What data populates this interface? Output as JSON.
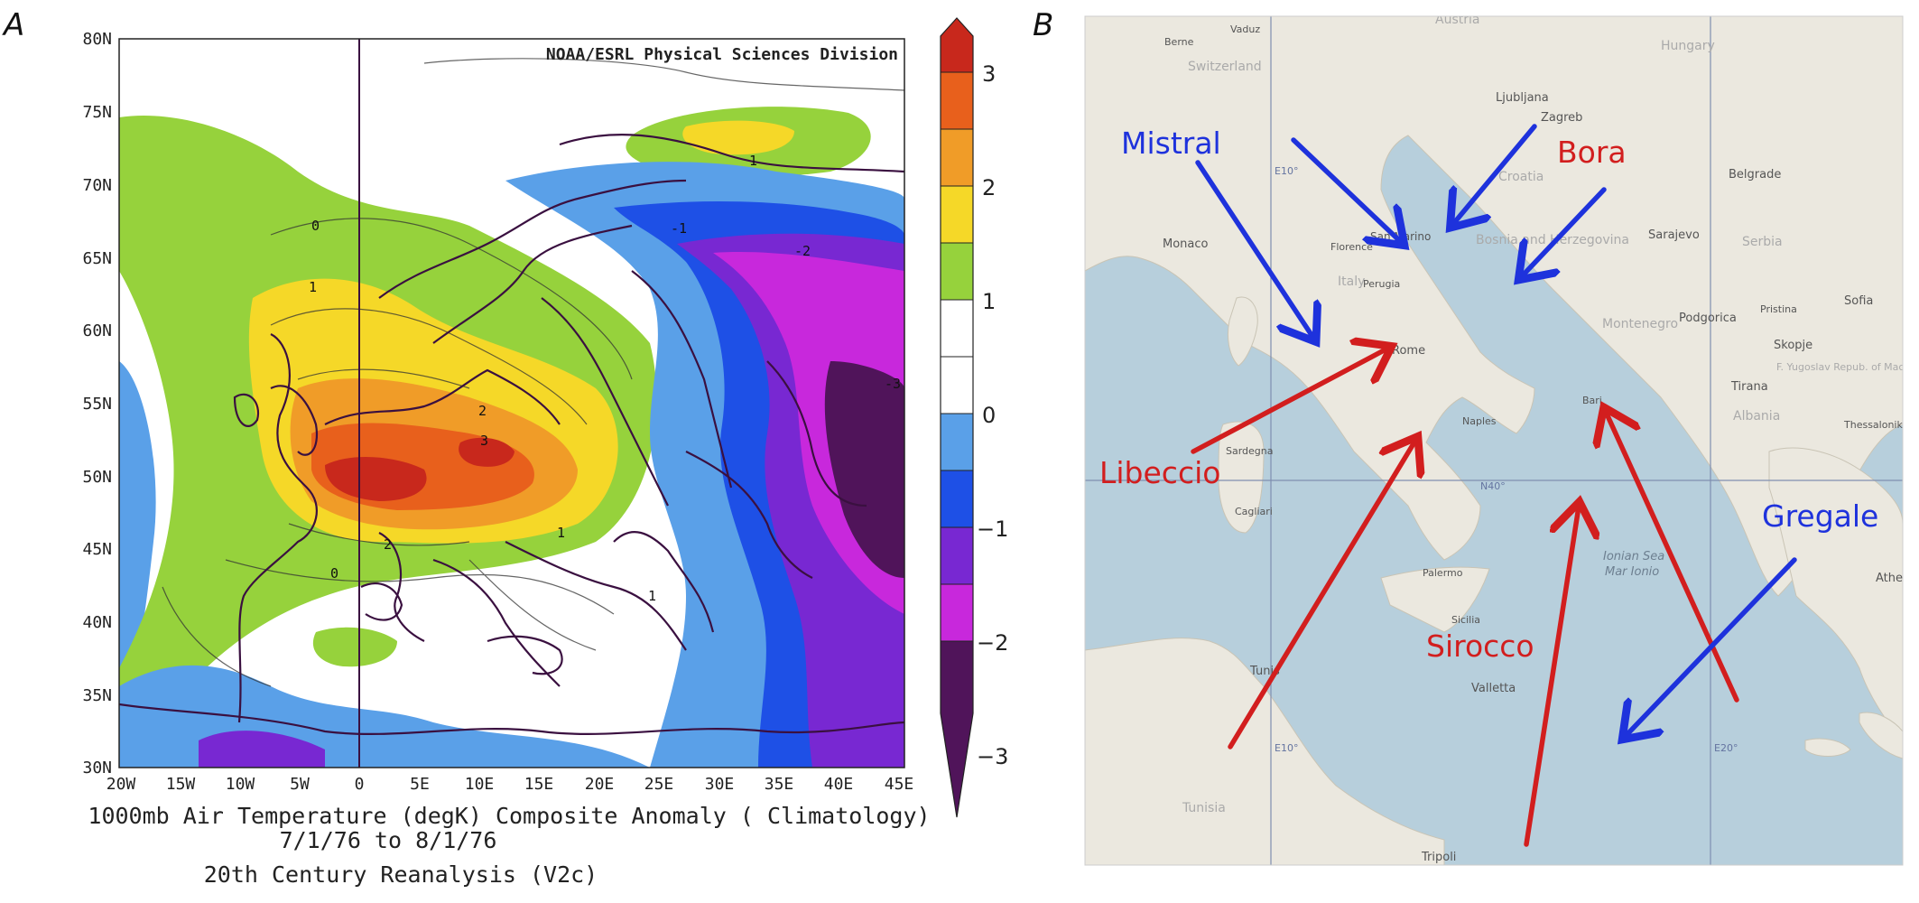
{
  "panels": {
    "a_label": "A",
    "b_label": "B"
  },
  "map_a": {
    "credit": "NOAA/ESRL Physical Sciences Division",
    "y_ticks": [
      "80N",
      "75N",
      "70N",
      "65N",
      "60N",
      "55N",
      "50N",
      "45N",
      "40N",
      "35N",
      "30N"
    ],
    "x_ticks": [
      "20W",
      "15W",
      "10W",
      "5W",
      "0",
      "5E",
      "10E",
      "15E",
      "20E",
      "25E",
      "30E",
      "35E",
      "40E",
      "45E"
    ],
    "caption_line1": "1000mb Air Temperature (degK) Composite Anomaly ( Climatology)",
    "caption_line2": "7/1/76   to 8/1/76",
    "caption_line3": "20th Century Reanalysis (V2c)",
    "contour_labels": [
      "1",
      "1",
      "2",
      "3",
      "1",
      "-1",
      "-2",
      "0",
      "0",
      "1",
      "2",
      "-3"
    ],
    "colorbar": {
      "labels": [
        "3",
        "2",
        "1",
        "0",
        "−1",
        "−2",
        "−3"
      ],
      "colors": [
        "#c8281c",
        "#e8601c",
        "#f09c28",
        "#f5d828",
        "#96d23c",
        "#ffffff",
        "#ffffff",
        "#5aa0e8",
        "#1e50e6",
        "#7828d2",
        "#c828dc",
        "#50145a"
      ]
    }
  },
  "map_b": {
    "cities": [
      "Vaduz",
      "Berne",
      "Switzerland",
      "Ljubljana",
      "Zagreb",
      "Croatia",
      "Monaco",
      "San Marino",
      "Florence",
      "Italy",
      "Perugia",
      "Bosnia and Herzegovina",
      "Sarajevo",
      "Belgrade",
      "Serbia",
      "Sofia",
      "Montenegro",
      "Podgorica",
      "Skopje",
      "Pristina",
      "F. Yugoslav Repub. of Macedonia",
      "Tirana",
      "Albania",
      "Rome",
      "Naples",
      "Bari",
      "Sardegna",
      "Cagliari",
      "Palermo",
      "Sicilia",
      "Tunis",
      "Valletta",
      "Tunisia",
      "Tripoli",
      "Ionian Sea",
      "Mar Ionio",
      "Athens",
      "Thessaloniki",
      "Hungary",
      "Austria"
    ],
    "grid_labels": [
      "E10°",
      "E20°",
      "N40°"
    ],
    "winds": [
      {
        "name": "Mistral",
        "color": "#1e32dc"
      },
      {
        "name": "Bora",
        "color": "#d21e1e"
      },
      {
        "name": "Libeccio",
        "color": "#d21e1e"
      },
      {
        "name": "Gregale",
        "color": "#1e32dc"
      },
      {
        "name": "Sirocco",
        "color": "#d21e1e"
      }
    ]
  }
}
